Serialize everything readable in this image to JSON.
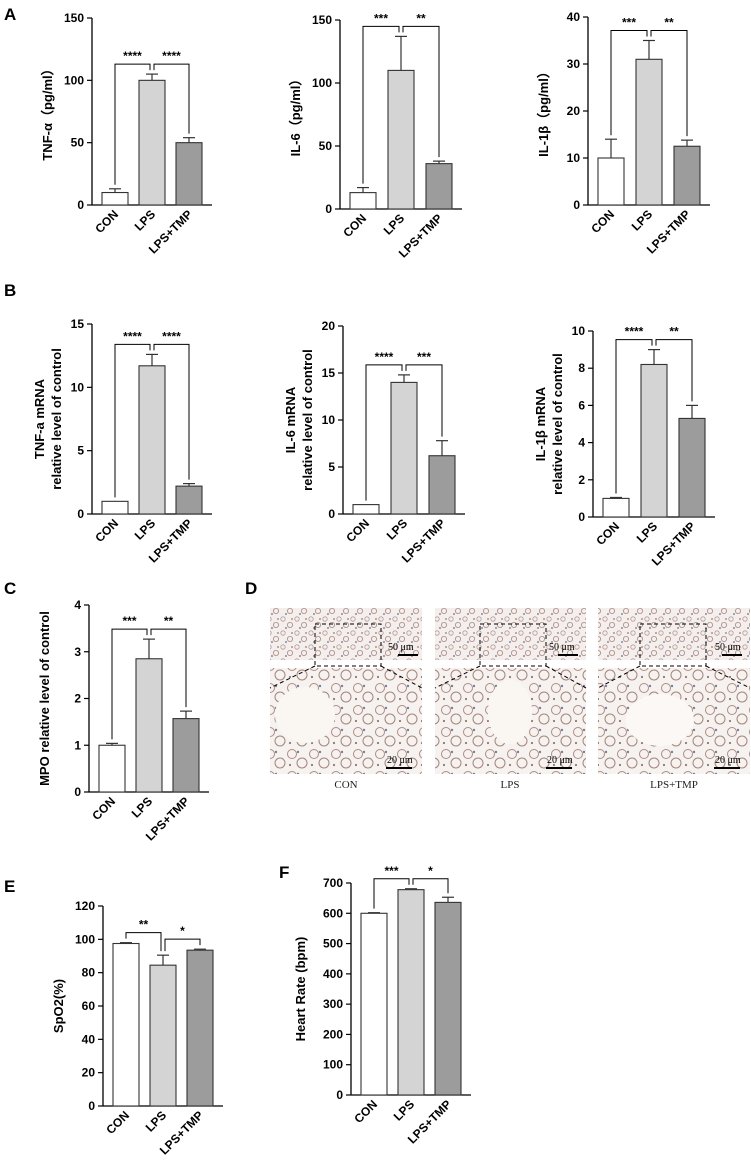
{
  "panel_letters": [
    "A",
    "B",
    "C",
    "D",
    "E",
    "F"
  ],
  "colors": {
    "CON": "#ffffff",
    "LPS": "#d4d4d4",
    "LPS+TMP": "#9c9c9c",
    "stroke": "#333333"
  },
  "chart_data": [
    {
      "id": "A1",
      "panel": "A",
      "type": "bar",
      "ylabel": "TNF-α（pg/ml）",
      "categories": [
        "CON",
        "LPS",
        "LPS+TMP"
      ],
      "values": [
        10,
        100,
        50
      ],
      "errors": [
        3,
        5,
        4
      ],
      "ylim": [
        0,
        150
      ],
      "yticks": [
        0,
        50,
        100,
        150
      ],
      "sig": [
        {
          "from": 0,
          "to": 1,
          "label": "****"
        },
        {
          "from": 1,
          "to": 2,
          "label": "****"
        }
      ]
    },
    {
      "id": "A2",
      "panel": "A",
      "type": "bar",
      "ylabel": "IL-6（pg/ml）",
      "categories": [
        "CON",
        "LPS",
        "LPS+TMP"
      ],
      "values": [
        13,
        110,
        36
      ],
      "errors": [
        4,
        27,
        2
      ],
      "ylim": [
        0,
        150
      ],
      "yticks": [
        0,
        50,
        100,
        150
      ],
      "sig": [
        {
          "from": 0,
          "to": 1,
          "label": "***"
        },
        {
          "from": 1,
          "to": 2,
          "label": "**"
        }
      ]
    },
    {
      "id": "A3",
      "panel": "A",
      "type": "bar",
      "ylabel": "IL-1β（pg/ml）",
      "categories": [
        "CON",
        "LPS",
        "LPS+TMP"
      ],
      "values": [
        10,
        31,
        12.5
      ],
      "errors": [
        4,
        4,
        1.3
      ],
      "ylim": [
        0,
        40
      ],
      "yticks": [
        0,
        10,
        20,
        30,
        40
      ],
      "sig": [
        {
          "from": 0,
          "to": 1,
          "label": "***"
        },
        {
          "from": 1,
          "to": 2,
          "label": "**"
        }
      ]
    },
    {
      "id": "B1",
      "panel": "B",
      "type": "bar",
      "ylabel": [
        "TNF-a mRNA",
        "relative level of control"
      ],
      "categories": [
        "CON",
        "LPS",
        "LPS+TMP"
      ],
      "values": [
        1,
        11.7,
        2.2
      ],
      "errors": [
        0,
        0.9,
        0.2
      ],
      "ylim": [
        0,
        15
      ],
      "yticks": [
        0,
        5,
        10,
        15
      ],
      "sig": [
        {
          "from": 0,
          "to": 1,
          "label": "****"
        },
        {
          "from": 1,
          "to": 2,
          "label": "****"
        }
      ]
    },
    {
      "id": "B2",
      "panel": "B",
      "type": "bar",
      "ylabel": [
        "IL-6 mRNA",
        "relative level of control"
      ],
      "categories": [
        "CON",
        "LPS",
        "LPS+TMP"
      ],
      "values": [
        1,
        14,
        6.2
      ],
      "errors": [
        0,
        0.8,
        1.6
      ],
      "ylim": [
        0,
        20
      ],
      "yticks": [
        0,
        5,
        10,
        15,
        20
      ],
      "sig": [
        {
          "from": 0,
          "to": 1,
          "label": "****"
        },
        {
          "from": 1,
          "to": 2,
          "label": "***"
        }
      ]
    },
    {
      "id": "B3",
      "panel": "B",
      "type": "bar",
      "ylabel": [
        "IL-1β mRNA",
        "relative level of control"
      ],
      "categories": [
        "CON",
        "LPS",
        "LPS+TMP"
      ],
      "values": [
        1,
        8.2,
        5.3
      ],
      "errors": [
        0.05,
        0.8,
        0.7
      ],
      "ylim": [
        0,
        10
      ],
      "yticks": [
        0,
        2,
        4,
        6,
        8,
        10
      ],
      "sig": [
        {
          "from": 0,
          "to": 1,
          "label": "****"
        },
        {
          "from": 1,
          "to": 2,
          "label": "**"
        }
      ]
    },
    {
      "id": "C",
      "panel": "C",
      "type": "bar",
      "ylabel": "MPO relative level of control",
      "categories": [
        "CON",
        "LPS",
        "LPS+TMP"
      ],
      "values": [
        1,
        2.85,
        1.57
      ],
      "errors": [
        0.04,
        0.42,
        0.16
      ],
      "ylim": [
        0,
        4
      ],
      "yticks": [
        0,
        1,
        2,
        3,
        4
      ],
      "sig": [
        {
          "from": 0,
          "to": 1,
          "label": "***"
        },
        {
          "from": 1,
          "to": 2,
          "label": "**"
        }
      ]
    },
    {
      "id": "E",
      "panel": "E",
      "type": "bar",
      "ylabel": "SpO2(%)",
      "categories": [
        "CON",
        "LPS",
        "LPS+TMP"
      ],
      "values": [
        97.5,
        84.5,
        93.5
      ],
      "errors": [
        0.5,
        6,
        0.6
      ],
      "ylim": [
        0,
        120
      ],
      "yticks": [
        0,
        20,
        40,
        60,
        80,
        100,
        120
      ],
      "sig": [
        {
          "from": 0,
          "to": 1,
          "label": "**"
        },
        {
          "from": 1,
          "to": 2,
          "label": "*"
        }
      ]
    },
    {
      "id": "F",
      "panel": "F",
      "type": "bar",
      "ylabel": "Heart Rate (bpm)",
      "categories": [
        "CON",
        "LPS",
        "LPS+TMP"
      ],
      "values": [
        600,
        678,
        636
      ],
      "errors": [
        2,
        3,
        17
      ],
      "ylim": [
        0,
        700
      ],
      "yticks": [
        0,
        100,
        200,
        300,
        400,
        500,
        600,
        700
      ],
      "sig": [
        {
          "from": 0,
          "to": 1,
          "label": "***"
        },
        {
          "from": 1,
          "to": 2,
          "label": "*"
        }
      ]
    }
  ],
  "histology": {
    "labels": [
      "CON",
      "LPS",
      "LPS+TMP"
    ],
    "scale_top": "50 μm",
    "scale_bottom": "20 μm"
  }
}
